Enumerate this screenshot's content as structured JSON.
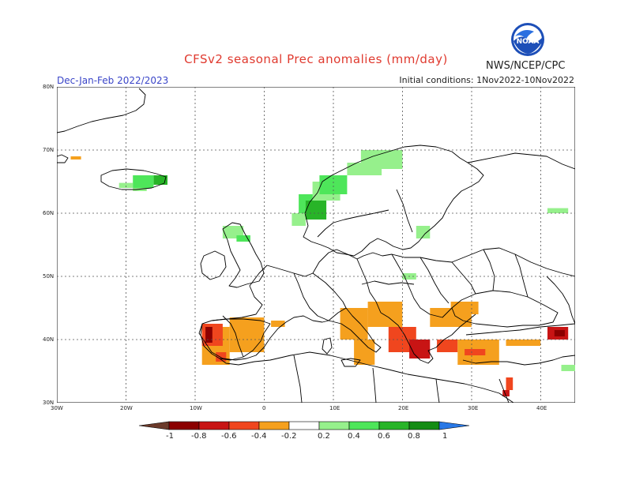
{
  "header": {
    "title": "CFSv2 seasonal Prec anomalies (mm/day)",
    "period": "Dec-Jan-Feb 2022/2023",
    "initial_conditions": "Initial conditions: 1Nov2022-10Nov2022",
    "agency": "NWS/NCEP/CPC",
    "logo_text": "NOAA"
  },
  "map": {
    "lat_labels": [
      "80N",
      "70N",
      "60N",
      "50N",
      "40N",
      "30N"
    ],
    "lon_labels": [
      "30W",
      "20W",
      "10W",
      "0",
      "10E",
      "20E",
      "30E",
      "40E"
    ],
    "extent": {
      "lon": [
        -30,
        45
      ],
      "lat": [
        30,
        80
      ]
    }
  },
  "legend": {
    "labels": [
      "-1",
      "-0.8",
      "-0.6",
      "-0.4",
      "-0.2",
      "0.2",
      "0.4",
      "0.6",
      "0.8",
      "1"
    ],
    "colors": {
      "below_min": "#6b3a2a",
      "-1_-0.8": "#8b0000",
      "-0.8_-0.6": "#c81414",
      "-0.6_-0.4": "#f0461e",
      "-0.4_-0.2": "#f5a01e",
      "-0.2_0.2": "#ffffff",
      "0.2_0.4": "#96f08c",
      "0.4_0.6": "#4ee65a",
      "0.6_0.8": "#28b428",
      "0.8_1": "#148c14",
      "above_max": "#2878e6"
    }
  }
}
